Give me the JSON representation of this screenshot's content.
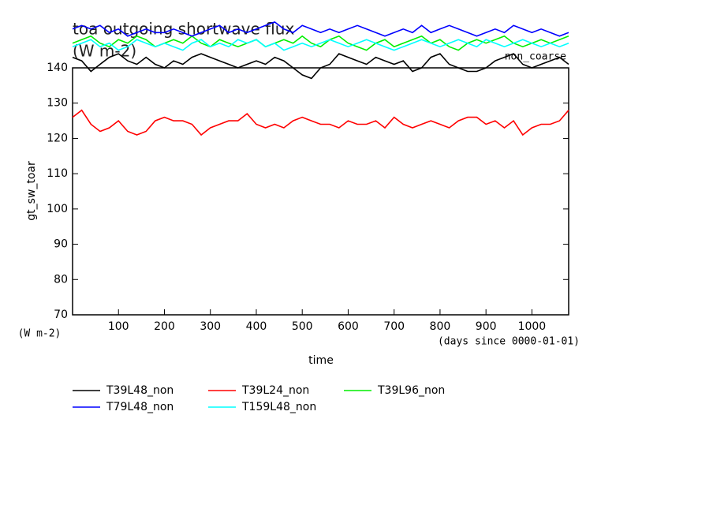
{
  "chart_data": {
    "type": "line",
    "title": "toa outgoing shortwave flux",
    "subtitle": "(W m-2)",
    "annotation": "non_coarse",
    "ylabel": "gt_sw_toar",
    "yunits": "(W m-2)",
    "xlabel": "time",
    "xunits": "(days since 0000-01-01)",
    "xlim": [
      0,
      1080
    ],
    "xticks": [
      100,
      200,
      300,
      400,
      500,
      600,
      700,
      800,
      900,
      1000
    ],
    "ylim": [
      70,
      140
    ],
    "yticks": [
      70,
      80,
      90,
      100,
      110,
      120,
      130,
      140
    ],
    "x": [
      0,
      20,
      40,
      60,
      80,
      100,
      120,
      140,
      160,
      180,
      200,
      220,
      240,
      260,
      280,
      300,
      320,
      340,
      360,
      380,
      400,
      420,
      440,
      460,
      480,
      500,
      520,
      540,
      560,
      580,
      600,
      620,
      640,
      660,
      680,
      700,
      720,
      740,
      760,
      780,
      800,
      820,
      840,
      860,
      880,
      900,
      920,
      940,
      960,
      980,
      1000,
      1020,
      1040,
      1060,
      1080
    ],
    "series": [
      {
        "name": "T39L48_non",
        "color": "#000000",
        "values": [
          143,
          142,
          139,
          141,
          143,
          144,
          142,
          141,
          143,
          141,
          140,
          142,
          141,
          143,
          144,
          143,
          142,
          141,
          140,
          141,
          142,
          141,
          143,
          142,
          140,
          138,
          137,
          140,
          141,
          144,
          143,
          142,
          141,
          143,
          142,
          141,
          142,
          139,
          140,
          143,
          144,
          141,
          140,
          139,
          139,
          140,
          142,
          143,
          144,
          141,
          140,
          141,
          142,
          143,
          141
        ]
      },
      {
        "name": "T39L24_non",
        "color": "#ff0000",
        "values": [
          126,
          128,
          124,
          122,
          123,
          125,
          122,
          121,
          122,
          125,
          126,
          125,
          125,
          124,
          121,
          123,
          124,
          125,
          125,
          127,
          124,
          123,
          124,
          123,
          125,
          126,
          125,
          124,
          124,
          123,
          125,
          124,
          124,
          125,
          123,
          126,
          124,
          123,
          124,
          125,
          124,
          123,
          125,
          126,
          126,
          124,
          125,
          123,
          125,
          121,
          123,
          124,
          124,
          125,
          128
        ]
      },
      {
        "name": "T39L96_non",
        "color": "#00ee00",
        "values": [
          147,
          148,
          149,
          147,
          146,
          148,
          147,
          149,
          148,
          146,
          147,
          148,
          147,
          149,
          147,
          146,
          148,
          147,
          146,
          147,
          148,
          146,
          147,
          148,
          147,
          149,
          147,
          146,
          148,
          149,
          147,
          146,
          145,
          147,
          148,
          146,
          147,
          148,
          149,
          147,
          148,
          146,
          145,
          147,
          148,
          147,
          148,
          149,
          147,
          146,
          147,
          148,
          147,
          148,
          149
        ]
      },
      {
        "name": "T79L48_non",
        "color": "#0000ff",
        "values": [
          151,
          152,
          151,
          152,
          150,
          151,
          149,
          150,
          151,
          150,
          150,
          151,
          150,
          149,
          150,
          151,
          152,
          150,
          151,
          150,
          151,
          152,
          153,
          151,
          150,
          152,
          151,
          150,
          151,
          150,
          151,
          152,
          151,
          150,
          149,
          150,
          151,
          150,
          152,
          150,
          151,
          152,
          151,
          150,
          149,
          150,
          151,
          150,
          152,
          151,
          150,
          151,
          150,
          149,
          150
        ]
      },
      {
        "name": "T159L48_non",
        "color": "#00ffff",
        "values": [
          146,
          147,
          148,
          146,
          147,
          145,
          146,
          148,
          147,
          146,
          147,
          146,
          145,
          147,
          148,
          146,
          147,
          146,
          148,
          147,
          148,
          146,
          147,
          145,
          146,
          147,
          146,
          147,
          148,
          147,
          146,
          147,
          148,
          147,
          146,
          145,
          146,
          147,
          148,
          147,
          146,
          147,
          148,
          147,
          146,
          148,
          147,
          146,
          147,
          148,
          147,
          146,
          147,
          146,
          147
        ]
      }
    ]
  }
}
